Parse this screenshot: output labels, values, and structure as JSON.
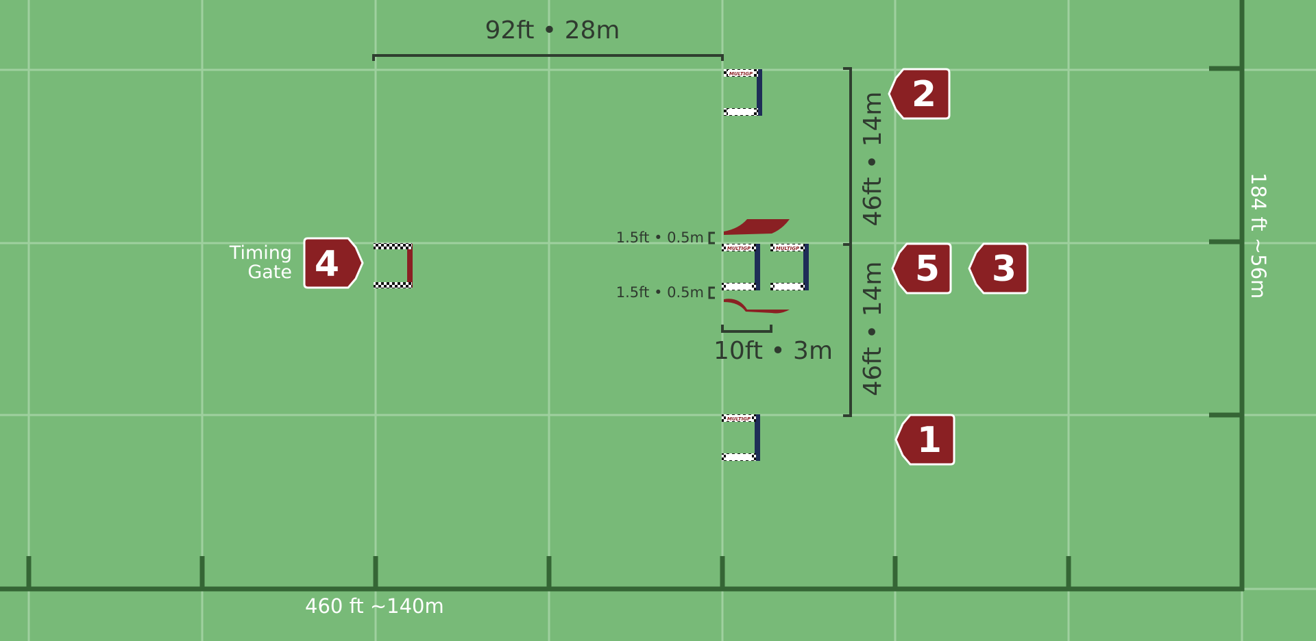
{
  "colors": {
    "grass": "#78ba78",
    "grid_line": "#9fd09f",
    "field_border": "#356535",
    "dimension_line": "#2f3e2f",
    "marker_fill": "#8a2023",
    "marker_outline": "#ffffff",
    "gate_post_blue": "#1e2d57",
    "gate_post_red": "#8a2023",
    "flag_red": "#8a2023",
    "label_dark": "#2f3a2f",
    "label_light": "#ffffff"
  },
  "dimensions": {
    "width_total": "460 ft  ~140m",
    "height_total": "184 ft  ~56m",
    "top_span": "92ft • 28m",
    "upper_vertical_span": "46ft • 14m",
    "lower_vertical_span": "46ft • 14m",
    "flag_gap_top": "1.5ft • 0.5m",
    "flag_gap_bottom": "1.5ft • 0.5m",
    "double_gate_spacing": "10ft • 3m"
  },
  "timing_gate_label": [
    "Timing",
    "Gate"
  ],
  "markers": [
    {
      "id": "marker-1",
      "label": "1",
      "icon": "pointer-left-hexagon-icon"
    },
    {
      "id": "marker-2",
      "label": "2",
      "icon": "pointer-left-hexagon-icon"
    },
    {
      "id": "marker-3",
      "label": "3",
      "icon": "pointer-left-hexagon-icon"
    },
    {
      "id": "marker-4",
      "label": "4",
      "icon": "pointer-right-hexagon-icon"
    },
    {
      "id": "marker-5",
      "label": "5",
      "icon": "pointer-left-hexagon-icon"
    }
  ],
  "gates": [
    {
      "id": "gate-2",
      "brand_text": "MULTIGP",
      "post_color": "blue"
    },
    {
      "id": "gate-5-left",
      "brand_text": "MULTIGP",
      "post_color": "blue"
    },
    {
      "id": "gate-5-right",
      "brand_text": "MULTIGP",
      "post_color": "blue"
    },
    {
      "id": "gate-1",
      "brand_text": "MULTIGP",
      "post_color": "blue"
    },
    {
      "id": "timing-gate",
      "brand_text": "",
      "post_color": "red"
    }
  ],
  "flags": [
    "flag-top",
    "flag-bottom"
  ]
}
